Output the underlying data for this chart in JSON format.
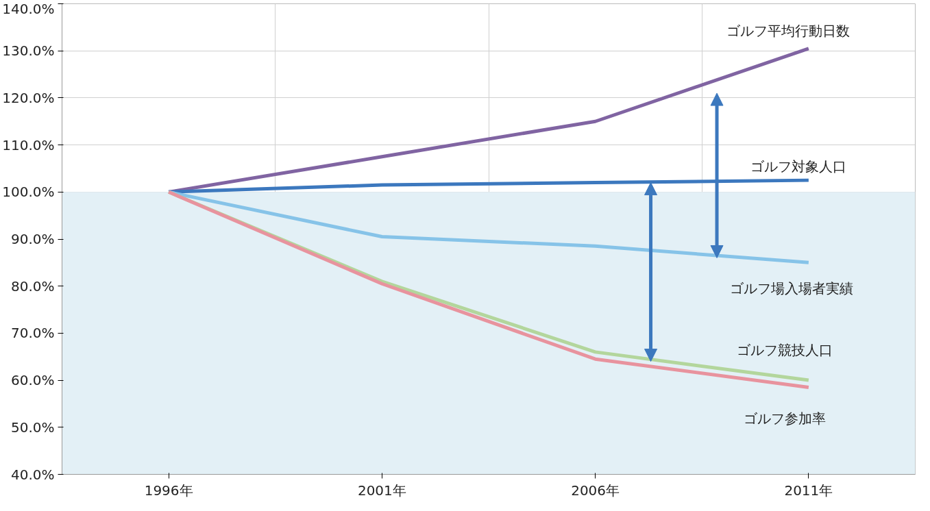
{
  "chart_data": {
    "type": "line",
    "categories": [
      "1996年",
      "2001年",
      "2006年",
      "2011年"
    ],
    "series": [
      {
        "name": "ゴルフ平均行動日数",
        "color": "#8064a2",
        "values": [
          100,
          107.5,
          115,
          130.5
        ]
      },
      {
        "name": "ゴルフ対象人口",
        "color": "#3c78be",
        "values": [
          100,
          101.5,
          102,
          102.5
        ]
      },
      {
        "name": "ゴルフ場入場者実績",
        "color": "#86c3e8",
        "values": [
          100,
          90.5,
          88.5,
          85
        ]
      },
      {
        "name": "ゴルフ競技人口",
        "color": "#b3d69c",
        "values": [
          100,
          81,
          66,
          60
        ]
      },
      {
        "name": "ゴルフ参加率",
        "color": "#e8939e",
        "values": [
          100,
          80.5,
          64.5,
          58.5
        ]
      }
    ],
    "ylim": [
      40,
      140
    ],
    "yticks": [
      {
        "value": 40,
        "label": "40.0%"
      },
      {
        "value": 50,
        "label": "50.0%"
      },
      {
        "value": 60,
        "label": "60.0%"
      },
      {
        "value": 70,
        "label": "70.0%"
      },
      {
        "value": 80,
        "label": "80.0%"
      },
      {
        "value": 90,
        "label": "90.0%"
      },
      {
        "value": 100,
        "label": "100.0%"
      },
      {
        "value": 110,
        "label": "110.0%"
      },
      {
        "value": 120,
        "label": "120.0%"
      },
      {
        "value": 130,
        "label": "130.0%"
      },
      {
        "value": 140,
        "label": "140.0%"
      }
    ],
    "bands": [
      {
        "axis": "y",
        "from": 40,
        "to": 100,
        "color": "#e3f0f6"
      }
    ],
    "grid": true,
    "marker": "none",
    "line_style": "solid"
  }
}
